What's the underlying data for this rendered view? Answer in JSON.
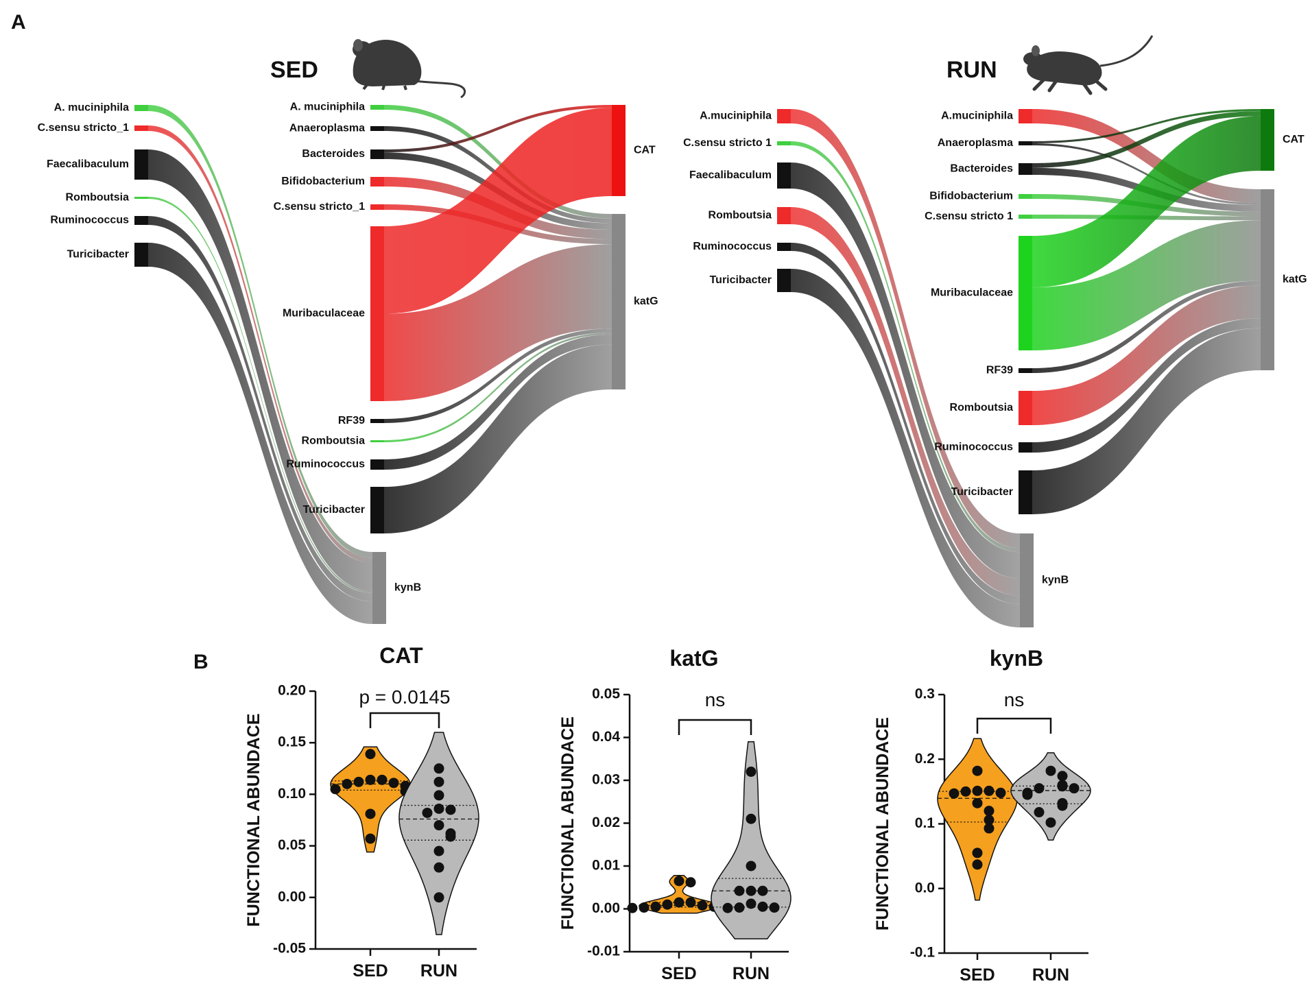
{
  "panels": {
    "a": "A",
    "b": "B"
  },
  "sankey": [
    {
      "title": "SED",
      "icon": "sedentary-mouse-icon",
      "sources_left": [
        {
          "label": "A. muciniphila",
          "color": "#3fcf3f",
          "weight": 0.8
        },
        {
          "label": "C.sensu stricto_1",
          "color": "#ee2a2a",
          "weight": 0.8
        },
        {
          "label": "Faecalibaculum",
          "color": "#111111",
          "weight": 3.8
        },
        {
          "label": "Romboutsia",
          "color": "#3fcf3f",
          "weight": 0.3
        },
        {
          "label": "Ruminococcus",
          "color": "#111111",
          "weight": 1.3
        },
        {
          "label": "Turicibacter",
          "color": "#111111",
          "weight": 3.5
        }
      ],
      "sources_right": [
        {
          "label": "A. muciniphila",
          "color": "#3fcf3f",
          "weight": 0.6
        },
        {
          "label": "Anaeroplasma",
          "color": "#111111",
          "weight": 0.6
        },
        {
          "label": "Bacteroides",
          "color": "#111111",
          "weight": 1.4
        },
        {
          "label": "Bifidobacterium",
          "color": "#ee2a2a",
          "weight": 1.4
        },
        {
          "label": "C.sensu stricto_1",
          "color": "#ee2a2a",
          "weight": 0.8
        },
        {
          "label": "Muribaculaceae",
          "color": "#ee2a2a",
          "weight": 20
        },
        {
          "label": "RF39",
          "color": "#111111",
          "weight": 0.5
        },
        {
          "label": "Romboutsia",
          "color": "#3fcf3f",
          "weight": 0.3
        },
        {
          "label": "Ruminococcus",
          "color": "#111111",
          "weight": 1.2
        },
        {
          "label": "Turicibacter",
          "color": "#111111",
          "weight": 5.5
        }
      ],
      "targets": [
        {
          "label": "CAT",
          "color": "#ee1111"
        },
        {
          "label": "katG",
          "color": "#888888"
        },
        {
          "label": "kynB",
          "color": "#888888"
        }
      ]
    },
    {
      "title": "RUN",
      "icon": "running-mouse-icon",
      "sources_left": [
        {
          "label": "A.muciniphila",
          "color": "#ee2a2a",
          "weight": 1.8
        },
        {
          "label": "C.sensu stricto 1",
          "color": "#3fcf3f",
          "weight": 0.5
        },
        {
          "label": "Faecalibaculum",
          "color": "#111111",
          "weight": 3.3
        },
        {
          "label": "Romboutsia",
          "color": "#ee2a2a",
          "weight": 2.1
        },
        {
          "label": "Ruminococcus",
          "color": "#111111",
          "weight": 1.1
        },
        {
          "label": "Turicibacter",
          "color": "#111111",
          "weight": 2.9
        }
      ],
      "sources_right": [
        {
          "label": "A.muciniphila",
          "color": "#ee2a2a",
          "weight": 1.5
        },
        {
          "label": "Anaeroplasma",
          "color": "#111111",
          "weight": 0.5
        },
        {
          "label": "Bacteroides",
          "color": "#111111",
          "weight": 1.5
        },
        {
          "label": "Bifidobacterium",
          "color": "#3fcf3f",
          "weight": 0.5
        },
        {
          "label": "C.sensu stricto 1",
          "color": "#3fcf3f",
          "weight": 0.5
        },
        {
          "label": "Muribaculaceae",
          "color": "#1ed31e",
          "weight": 13
        },
        {
          "label": "RF39",
          "color": "#111111",
          "weight": 0.5
        },
        {
          "label": "Romboutsia",
          "color": "#ee2a2a",
          "weight": 4
        },
        {
          "label": "Ruminococcus",
          "color": "#111111",
          "weight": 1.3
        },
        {
          "label": "Turicibacter",
          "color": "#111111",
          "weight": 5
        }
      ],
      "targets": [
        {
          "label": "CAT",
          "color": "#0e7a0e"
        },
        {
          "label": "katG",
          "color": "#888888"
        },
        {
          "label": "kynB",
          "color": "#888888"
        }
      ]
    }
  ],
  "chart_data": [
    {
      "type": "violin",
      "title": "CAT",
      "ylabel": "FUNCTIONAL ABUNDACE",
      "ylim": [
        -0.05,
        0.2
      ],
      "yticks": [
        "0.20",
        "0.15",
        "0.10",
        "0.05",
        "0.00",
        "-0.05"
      ],
      "ytick_values": [
        0.2,
        0.15,
        0.1,
        0.05,
        0.0,
        -0.05
      ],
      "categories": [
        "SED",
        "RUN"
      ],
      "colors": [
        "#f5a01f",
        "#b9b9b9"
      ],
      "annotation": "p = 0.0145",
      "series": [
        {
          "name": "SED",
          "values": [
            0.139,
            0.114,
            0.114,
            0.112,
            0.111,
            0.11,
            0.108,
            0.105,
            0.103,
            0.081,
            0.057
          ],
          "range": [
            0.044,
            0.146
          ]
        },
        {
          "name": "RUN",
          "values": [
            0.125,
            0.112,
            0.099,
            0.086,
            0.085,
            0.082,
            0.07,
            0.062,
            0.059,
            0.045,
            0.029,
            0.0
          ],
          "range": [
            -0.036,
            0.16
          ]
        }
      ]
    },
    {
      "type": "violin",
      "title": "katG",
      "ylabel": "FUNCTIONAL ABUNDACE",
      "ylim": [
        -0.01,
        0.05
      ],
      "yticks": [
        "0.05",
        "0.04",
        "0.03",
        "0.02",
        "0.01",
        "0.00",
        "-0.01"
      ],
      "ytick_values": [
        0.05,
        0.04,
        0.03,
        0.02,
        0.01,
        0.0,
        -0.01
      ],
      "categories": [
        "SED",
        "RUN"
      ],
      "colors": [
        "#f5a01f",
        "#b9b9b9"
      ],
      "annotation": "ns",
      "series": [
        {
          "name": "SED",
          "values": [
            0.0065,
            0.0062,
            0.0015,
            0.0015,
            0.001,
            0.0008,
            0.0005,
            0.0005,
            0.0003,
            0.0002,
            0.0002
          ],
          "range": [
            -0.001,
            0.0078
          ]
        },
        {
          "name": "RUN",
          "values": [
            0.032,
            0.021,
            0.01,
            0.0042,
            0.0042,
            0.0042,
            0.0012,
            0.0005,
            0.0003,
            0.0003,
            0.0002
          ],
          "range": [
            -0.007,
            0.039
          ]
        }
      ]
    },
    {
      "type": "violin",
      "title": "kynB",
      "ylabel": "FUNCTIONAL ABUNDACE",
      "ylim": [
        -0.1,
        0.3
      ],
      "yticks": [
        "0.3",
        "0.2",
        "0.1",
        "0.0",
        "-0.1"
      ],
      "ytick_values": [
        0.3,
        0.2,
        0.1,
        0.0,
        -0.1
      ],
      "categories": [
        "SED",
        "RUN"
      ],
      "colors": [
        "#f5a01f",
        "#b9b9b9"
      ],
      "annotation": "ns",
      "series": [
        {
          "name": "SED",
          "values": [
            0.182,
            0.151,
            0.151,
            0.15,
            0.148,
            0.147,
            0.132,
            0.12,
            0.106,
            0.093,
            0.055,
            0.037
          ],
          "range": [
            -0.018,
            0.232
          ]
        },
        {
          "name": "RUN",
          "values": [
            0.182,
            0.174,
            0.16,
            0.158,
            0.155,
            0.155,
            0.148,
            0.145,
            0.132,
            0.128,
            0.118,
            0.102
          ],
          "range": [
            0.075,
            0.21
          ]
        }
      ]
    }
  ]
}
